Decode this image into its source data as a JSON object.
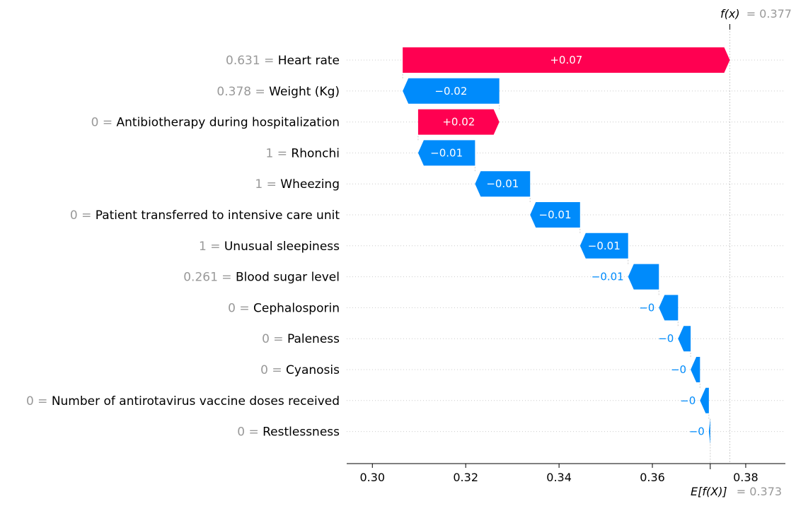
{
  "chart_data": {
    "type": "waterfall",
    "xlim": [
      0.2945,
      0.3885
    ],
    "xticks": [
      0.3,
      0.32,
      0.34,
      0.36,
      0.38
    ],
    "xtick_labels": [
      "0.30",
      "0.32",
      "0.34",
      "0.36",
      "0.38"
    ],
    "base_value": 0.3724,
    "output_value": 0.3766,
    "fx_label": "f(x)",
    "fx_value_text": "= 0.377",
    "efx_label": "E[f(X)]",
    "efx_value_text": "= 0.373",
    "features": [
      {
        "value": "0.631",
        "name": "Heart rate",
        "start": 0.3065,
        "end": 0.3766,
        "label": "+0.07"
      },
      {
        "value": "0.378",
        "name": "Weight (Kg)",
        "start": 0.3272,
        "end": 0.3065,
        "label": "−0.02"
      },
      {
        "value": "0",
        "name": "Antibiotherapy during hospitalization",
        "start": 0.3098,
        "end": 0.3272,
        "label": "+0.02"
      },
      {
        "value": "1",
        "name": "Rhonchi",
        "start": 0.322,
        "end": 0.3098,
        "label": "−0.01"
      },
      {
        "value": "1",
        "name": "Wheezing",
        "start": 0.3338,
        "end": 0.322,
        "label": "−0.01"
      },
      {
        "value": "0",
        "name": "Patient transferred to intensive care unit",
        "start": 0.3445,
        "end": 0.3338,
        "label": "−0.01"
      },
      {
        "value": "1",
        "name": "Unusual sleepiness",
        "start": 0.3548,
        "end": 0.3445,
        "label": "−0.01"
      },
      {
        "value": "0.261",
        "name": "Blood sugar level",
        "start": 0.3614,
        "end": 0.3548,
        "label": "−0.01"
      },
      {
        "value": "0",
        "name": "Cephalosporin",
        "start": 0.3655,
        "end": 0.3614,
        "label": "−0"
      },
      {
        "value": "0",
        "name": "Paleness",
        "start": 0.3682,
        "end": 0.3655,
        "label": "−0"
      },
      {
        "value": "0",
        "name": "Cyanosis",
        "start": 0.3702,
        "end": 0.3682,
        "label": "−0"
      },
      {
        "value": "0",
        "name": "Number of antirotavirus vaccine doses received",
        "start": 0.3721,
        "end": 0.3702,
        "label": "−0"
      },
      {
        "value": "0",
        "name": "Restlessness",
        "start": 0.3724,
        "end": 0.3721,
        "label": "−0"
      }
    ],
    "colors": {
      "positive": "#ff0051",
      "negative": "#008bfb",
      "muted": "#999999",
      "grid": "#cccccc"
    }
  }
}
